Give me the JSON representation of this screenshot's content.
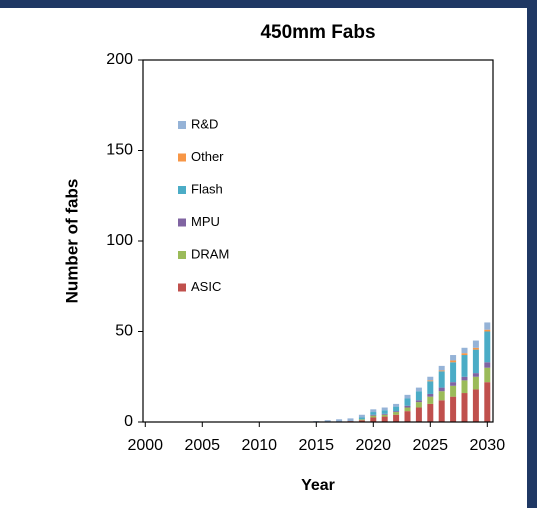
{
  "chart_data": {
    "type": "stacked_bar",
    "title": "450mm Fabs",
    "x_label": "Year",
    "y_label": "Number of fabs",
    "x": [
      2015,
      2016,
      2017,
      2018,
      2019,
      2020,
      2021,
      2022,
      2023,
      2024,
      2025,
      2026,
      2027,
      2028,
      2029,
      2030
    ],
    "series": [
      {
        "name": "ASIC",
        "color": "#c0504d",
        "values": [
          0,
          0,
          0,
          0.5,
          1,
          2.5,
          3,
          4,
          6,
          8,
          10,
          12,
          14,
          16,
          18,
          22
        ]
      },
      {
        "name": "DRAM",
        "color": "#9bbb59",
        "values": [
          0,
          0,
          0,
          0,
          0.5,
          1,
          1,
          1.5,
          2,
          3,
          4,
          5,
          6,
          7,
          7,
          8
        ]
      },
      {
        "name": "MPU",
        "color": "#8064a2",
        "values": [
          0,
          0,
          0,
          0,
          0,
          0.5,
          0.5,
          0.5,
          1,
          1,
          1.5,
          2,
          2,
          2,
          2,
          3
        ]
      },
      {
        "name": "Flash",
        "color": "#4bacc6",
        "values": [
          0,
          0,
          0,
          0,
          1,
          1.5,
          2,
          2.5,
          4,
          5,
          7,
          9,
          11,
          12,
          13,
          17
        ]
      },
      {
        "name": "Other",
        "color": "#f79646",
        "values": [
          0,
          0,
          0,
          0,
          0,
          0,
          0,
          0,
          0,
          0,
          0.5,
          0.5,
          1,
          1,
          1,
          1
        ]
      },
      {
        "name": "R&D",
        "color": "#95b3d7",
        "values": [
          0.5,
          1,
          1.5,
          1.5,
          1.5,
          1.5,
          1.5,
          1.5,
          2,
          2,
          2,
          2.5,
          3,
          3,
          4,
          4
        ]
      }
    ],
    "xlim": [
      1999.8,
      2030.5
    ],
    "xticks": [
      2000,
      2005,
      2010,
      2015,
      2020,
      2025,
      2030
    ],
    "ylim": [
      0,
      200
    ],
    "yticks": [
      0,
      50,
      100,
      150,
      200
    ],
    "grid": false,
    "legend": "upper left"
  }
}
